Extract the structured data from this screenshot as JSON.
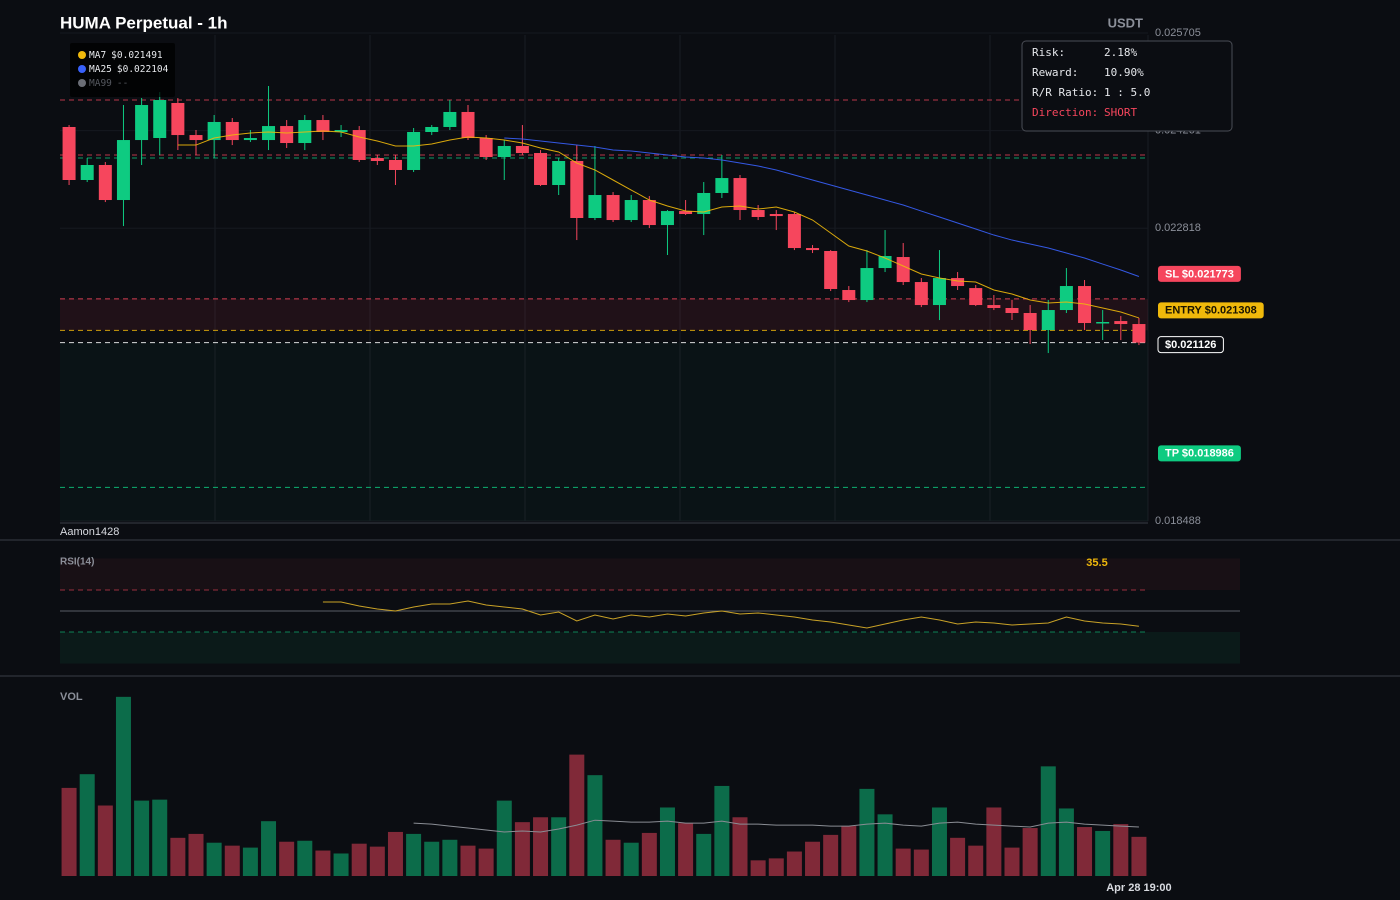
{
  "chart_data": [
    {
      "type": "candlestick",
      "title": "HUMA Perpetual - 1h",
      "unit": "USDT",
      "watermark": "Aamon1428",
      "up_color": "#0ecb81",
      "down_color": "#f6465d",
      "ylim": [
        0.018488,
        0.025705
      ],
      "yticks": [
        0.018488,
        0.022818,
        0.024261,
        0.025705
      ],
      "grid": true,
      "open": [
        0.024315,
        0.023531,
        0.023753,
        0.023235,
        0.024122,
        0.024152,
        0.02467,
        0.024196,
        0.024122,
        0.024389,
        0.024122,
        0.024122,
        0.024329,
        0.024078,
        0.024418,
        0.024241,
        0.02427,
        0.023856,
        0.023827,
        0.023679,
        0.024241,
        0.024315,
        0.024537,
        0.024152,
        0.023871,
        0.024034,
        0.02393,
        0.023457,
        0.023812,
        0.022969,
        0.023309,
        0.022939,
        0.023235,
        0.022865,
        0.023072,
        0.023028,
        0.023339,
        0.02356,
        0.023087,
        0.023028,
        0.023028,
        0.022525,
        0.022481,
        0.021904,
        0.021756,
        0.022229,
        0.022392,
        0.022022,
        0.021682,
        0.022081,
        0.021933,
        0.021682,
        0.021638,
        0.021564,
        0.021312,
        0.021608,
        0.021963,
        0.021416,
        0.021445,
        0.021401
      ],
      "high": [
        0.024344,
        0.023856,
        0.023797,
        0.02464,
        0.024744,
        0.024832,
        0.024744,
        0.02427,
        0.024492,
        0.024448,
        0.02427,
        0.024921,
        0.024418,
        0.024492,
        0.024492,
        0.024344,
        0.024329,
        0.023901,
        0.023901,
        0.0243,
        0.024344,
        0.024714,
        0.02464,
        0.024196,
        0.024122,
        0.024344,
        0.023974,
        0.023856,
        0.024048,
        0.024034,
        0.023353,
        0.023309,
        0.023294,
        0.023087,
        0.023235,
        0.023501,
        0.023901,
        0.023605,
        0.023161,
        0.023087,
        0.023058,
        0.022569,
        0.022495,
        0.021963,
        0.022495,
        0.022791,
        0.022599,
        0.022081,
        0.022495,
        0.02217,
        0.021978,
        0.02183,
        0.021756,
        0.021682,
        0.021756,
        0.022229,
        0.022052,
        0.021608,
        0.021519,
        0.02149
      ],
      "low": [
        0.023457,
        0.023501,
        0.023205,
        0.02285,
        0.023753,
        0.023901,
        0.023974,
        0.023901,
        0.023856,
        0.024048,
        0.024093,
        0.023974,
        0.024004,
        0.023974,
        0.024122,
        0.024167,
        0.023797,
        0.023753,
        0.023457,
        0.023649,
        0.024196,
        0.02427,
        0.024122,
        0.023827,
        0.023531,
        0.023901,
        0.023442,
        0.023309,
        0.022643,
        0.022939,
        0.02291,
        0.02291,
        0.022821,
        0.022422,
        0.023013,
        0.022717,
        0.023265,
        0.022939,
        0.022939,
        0.022791,
        0.022495,
        0.022451,
        0.021889,
        0.021726,
        0.021726,
        0.02217,
        0.021978,
        0.021652,
        0.02146,
        0.021904,
        0.021667,
        0.021608,
        0.02146,
        0.021105,
        0.020972,
        0.021564,
        0.021312,
        0.021164,
        0.021164,
        0.02109
      ],
      "close": [
        0.023531,
        0.023753,
        0.023235,
        0.024122,
        0.02464,
        0.024714,
        0.024196,
        0.024122,
        0.024389,
        0.024122,
        0.024152,
        0.024329,
        0.024078,
        0.024418,
        0.024241,
        0.02427,
        0.023827,
        0.023812,
        0.023679,
        0.024241,
        0.024315,
        0.024537,
        0.024152,
        0.023871,
        0.024034,
        0.02393,
        0.023457,
        0.023812,
        0.022969,
        0.023309,
        0.022939,
        0.023235,
        0.022865,
        0.023072,
        0.023028,
        0.023339,
        0.02356,
        0.023087,
        0.022984,
        0.022998,
        0.022525,
        0.022495,
        0.021919,
        0.021756,
        0.022229,
        0.022407,
        0.022022,
        0.021682,
        0.022081,
        0.021963,
        0.021682,
        0.021638,
        0.021564,
        0.021312,
        0.021608,
        0.021963,
        0.021416,
        0.021431,
        0.021401,
        0.021126
      ],
      "series": [
        {
          "name": "MA7",
          "label": "$0.021491",
          "color": "#f0b90b",
          "values": [
            null,
            null,
            null,
            null,
            null,
            null,
            0.024048,
            0.024048,
            0.024152,
            0.024196,
            0.024226,
            0.024241,
            0.024226,
            0.024241,
            0.024256,
            0.024241,
            0.024167,
            0.024108,
            0.024034,
            0.024034,
            0.024063,
            0.024122,
            0.024167,
            0.024152,
            0.024122,
            0.024078,
            0.024004,
            0.023945,
            0.023782,
            0.023679,
            0.023531,
            0.023383,
            0.023235,
            0.023146,
            0.023072,
            0.023058,
            0.023131,
            0.023146,
            0.023102,
            0.023131,
            0.023058,
            0.022939,
            0.022747,
            0.022555,
            0.022481,
            0.022377,
            0.022259,
            0.022141,
            0.022081,
            0.022037,
            0.022022,
            0.021904,
            0.021845,
            0.021756,
            0.021712,
            0.021726,
            0.021697,
            0.021638,
            0.021579,
            0.021491
          ]
        },
        {
          "name": "MA25",
          "label": "$0.022104",
          "color": "#3861fb",
          "values": [
            null,
            null,
            null,
            null,
            null,
            null,
            null,
            null,
            null,
            null,
            null,
            null,
            null,
            null,
            null,
            null,
            null,
            null,
            null,
            null,
            null,
            null,
            null,
            null,
            0.024152,
            0.024137,
            0.024108,
            0.024078,
            0.024048,
            0.024019,
            0.023974,
            0.02396,
            0.02393,
            0.023901,
            0.023871,
            0.023856,
            0.023827,
            0.023782,
            0.023738,
            0.023679,
            0.023605,
            0.023531,
            0.023457,
            0.023383,
            0.023309,
            0.023235,
            0.023161,
            0.023072,
            0.022984,
            0.022895,
            0.022806,
            0.022717,
            0.022643,
            0.022584,
            0.022525,
            0.022451,
            0.022377,
            0.022288,
            0.0222,
            0.022104
          ]
        },
        {
          "name": "MA99",
          "label": "--",
          "color": "#6b6e76"
        }
      ],
      "levels": [
        {
          "value": 0.024714,
          "color": "#f6465d"
        },
        {
          "value": 0.023901,
          "color": "#f6465d"
        },
        {
          "value": 0.023857,
          "color": "#0ecb81"
        }
      ],
      "price_lines": [
        {
          "value": 0.021773,
          "label": "SL $0.021773",
          "color": "#f6465d"
        },
        {
          "value": 0.021308,
          "label": "ENTRY $0.021308",
          "color": "#f0b90b"
        },
        {
          "value": 0.021126,
          "label": "$0.021126",
          "color": "#ffffff"
        },
        {
          "value": 0.018986,
          "label": "TP $0.018986",
          "color": "#0ecb81"
        }
      ],
      "stats": [
        {
          "label": "Risk:",
          "value": "2.18%"
        },
        {
          "label": "Reward:",
          "value": "10.90%"
        },
        {
          "label": "R/R Ratio:",
          "value": "1 : 5.0"
        },
        {
          "label": "Direction:",
          "value": "SHORT"
        }
      ]
    },
    {
      "type": "line",
      "title": "RSI(14)",
      "color": "#c9a227",
      "ylim": [
        0,
        100
      ],
      "levels": [
        70,
        50,
        30
      ],
      "values": [
        null,
        null,
        null,
        null,
        null,
        null,
        null,
        null,
        null,
        null,
        null,
        null,
        null,
        null,
        58.6,
        58.6,
        54.8,
        51.9,
        50.0,
        53.8,
        56.7,
        56.7,
        59.5,
        55.7,
        53.8,
        51.9,
        46.2,
        49.0,
        40.5,
        46.2,
        42.4,
        46.2,
        44.3,
        47.1,
        45.2,
        48.1,
        50.0,
        47.1,
        48.1,
        46.2,
        44.3,
        41.4,
        39.5,
        36.7,
        33.8,
        37.6,
        41.4,
        44.3,
        41.4,
        37.6,
        39.5,
        38.6,
        36.7,
        37.6,
        38.6,
        44.3,
        40.5,
        38.6,
        37.6,
        35.5
      ]
    },
    {
      "type": "bar",
      "title": "VOL",
      "ylim": [
        0,
        190
      ],
      "categories": [
        null,
        null,
        null,
        null,
        null,
        null,
        null,
        null,
        null,
        null,
        null,
        null,
        null,
        null,
        null,
        null,
        null,
        null,
        null,
        null,
        null,
        null,
        null,
        null,
        null,
        null,
        null,
        null,
        null,
        null,
        null,
        null,
        null,
        null,
        null,
        null,
        null,
        null,
        null,
        null,
        null,
        null,
        null,
        null,
        null,
        null,
        null,
        null,
        null,
        null,
        null,
        null,
        null,
        null,
        null,
        null,
        null,
        null,
        null,
        "Apr 28 19:00"
      ],
      "values": [
        90,
        104,
        72,
        183,
        77,
        78,
        39,
        43,
        34,
        31,
        29,
        56,
        35,
        36,
        26,
        23,
        33,
        30,
        45,
        43,
        35,
        37,
        31,
        28,
        77,
        55,
        60,
        60,
        124,
        103,
        37,
        34,
        44,
        70,
        54,
        43,
        92,
        60,
        16,
        18,
        25,
        35,
        42,
        51,
        89,
        63,
        28,
        27,
        70,
        39,
        31,
        70,
        29,
        49,
        112,
        69,
        50,
        46,
        53,
        40
      ],
      "ma": {
        "color": "#8a8d94",
        "values": [
          null,
          null,
          null,
          null,
          null,
          null,
          null,
          null,
          null,
          null,
          null,
          null,
          null,
          null,
          null,
          null,
          null,
          null,
          null,
          54,
          53,
          51,
          49,
          47,
          45,
          46,
          45,
          48,
          52,
          57,
          56,
          55,
          55,
          56,
          54,
          54,
          56,
          53,
          53,
          52,
          52,
          52,
          51,
          51,
          53,
          54,
          52,
          51,
          54,
          55,
          53,
          52,
          51,
          50,
          54,
          55,
          53,
          52,
          51,
          50
        ]
      }
    }
  ]
}
